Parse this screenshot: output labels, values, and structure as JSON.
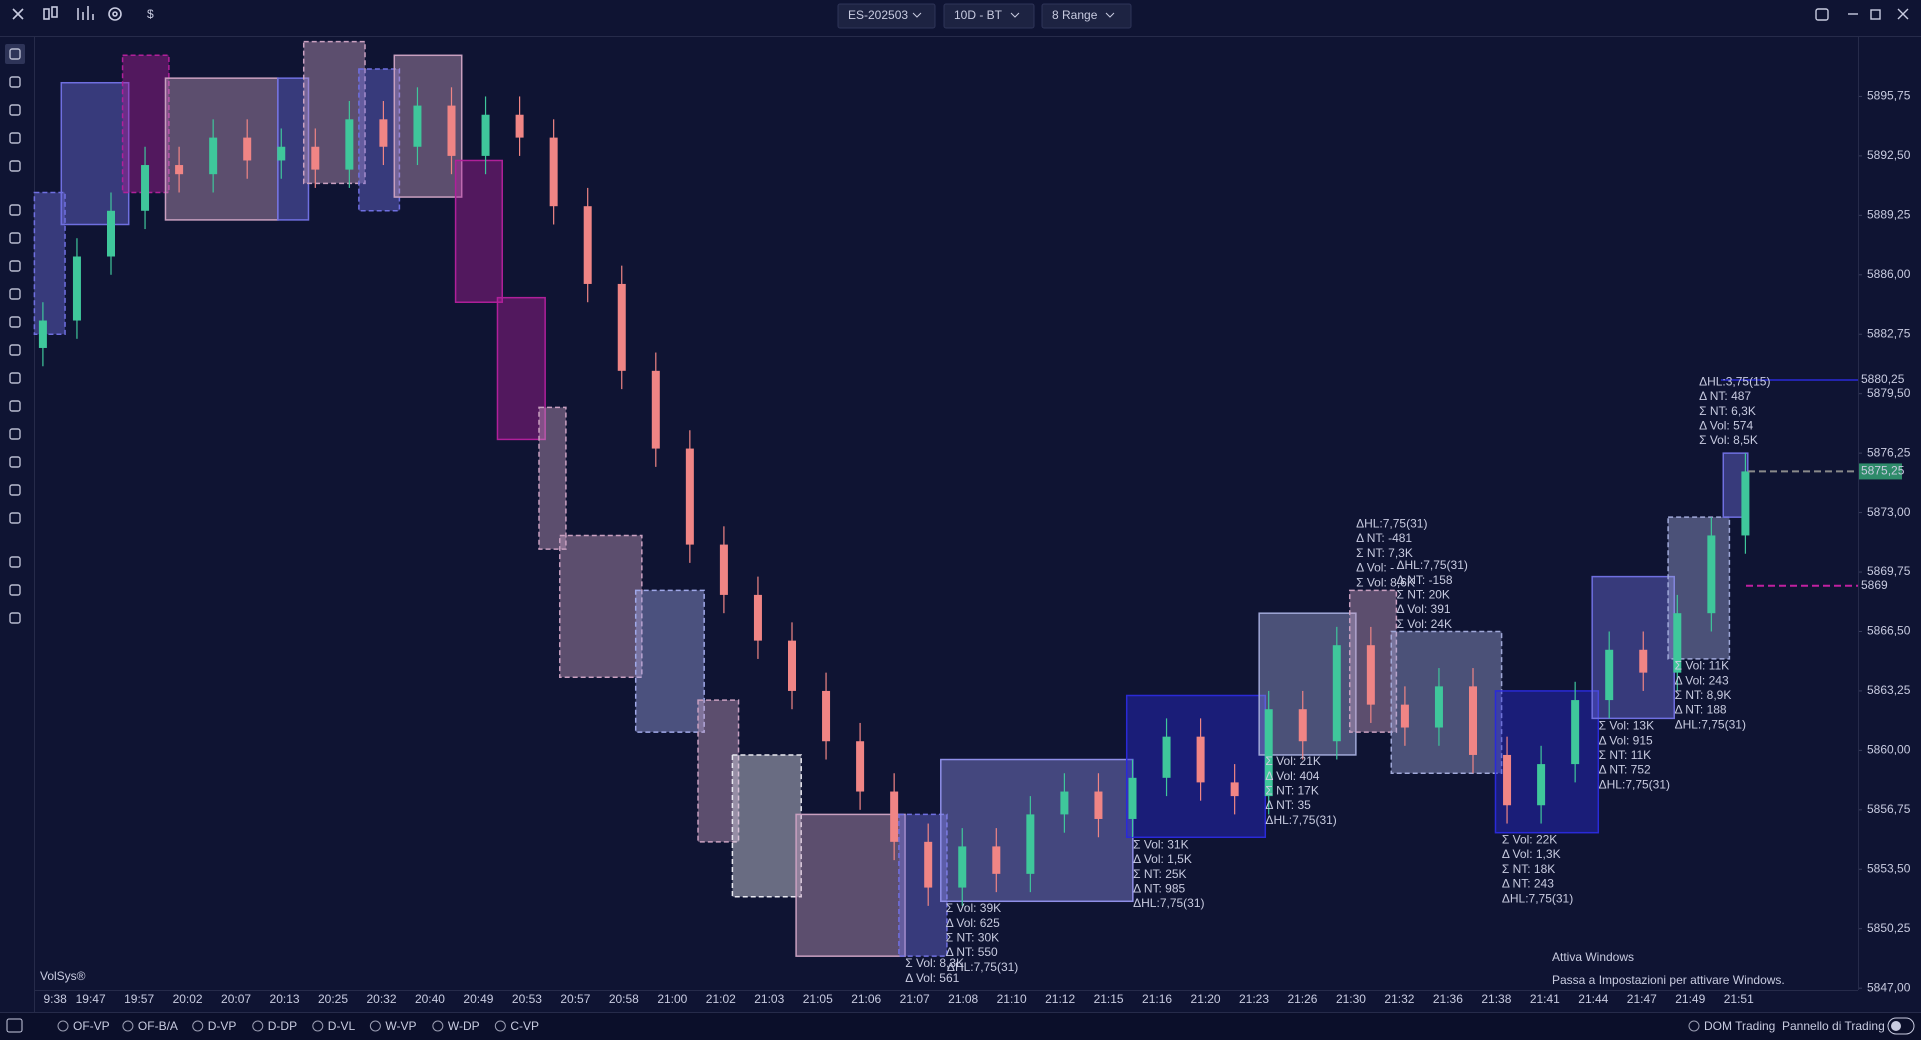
{
  "toolbar": {
    "symbol": "ES-202503",
    "period": "10D - BT",
    "bars": "8 Range",
    "currency": "$"
  },
  "chart": {
    "type": "candlestick",
    "ylim": [
      5846.9,
      5899
    ],
    "yticks": [
      {
        "value": 5847,
        "label": "5847,00"
      },
      {
        "value": 5850.25,
        "label": "5850,25"
      },
      {
        "value": 5853.5,
        "label": "5853,50"
      },
      {
        "value": 5856.75,
        "label": "5856,75"
      },
      {
        "value": 5860,
        "label": "5860,00"
      },
      {
        "value": 5863.25,
        "label": "5863,25"
      },
      {
        "value": 5866.5,
        "label": "5866,50"
      },
      {
        "value": 5869.75,
        "label": "5869,75"
      },
      {
        "value": 5873,
        "label": "5873,00"
      },
      {
        "value": 5876.25,
        "label": "5876,25"
      },
      {
        "value": 5879.5,
        "label": "5879,50"
      },
      {
        "value": 5882.75,
        "label": "5882,75"
      },
      {
        "value": 5886,
        "label": "5886,00"
      },
      {
        "value": 5889.25,
        "label": "5889,25"
      },
      {
        "value": 5892.5,
        "label": "5892,50"
      },
      {
        "value": 5895.75,
        "label": "5895,75"
      }
    ],
    "times": [
      "9:38",
      "19:47",
      "19:57",
      "20:02",
      "20:07",
      "20:13",
      "20:25",
      "20:32",
      "20:40",
      "20:49",
      "20:53",
      "20:57",
      "20:58",
      "21:00",
      "21:02",
      "21:03",
      "21:05",
      "21:06",
      "21:07",
      "21:08",
      "21:10",
      "21:12",
      "21:15",
      "21:16",
      "21:20",
      "21:23",
      "21:26",
      "21:30",
      "21:32",
      "21:36",
      "21:38",
      "21:41",
      "21:44",
      "21:47",
      "21:49",
      "21:51"
    ],
    "up_color": "#3fc79b",
    "down_color": "#f08585",
    "candles": [
      [
        5882,
        5884.5,
        5881,
        5883.5
      ],
      [
        5883.5,
        5888,
        5882.5,
        5887
      ],
      [
        5887,
        5890.5,
        5886,
        5889.5
      ],
      [
        5889.5,
        5893,
        5888.5,
        5892
      ],
      [
        5892,
        5893,
        5890.5,
        5891.5
      ],
      [
        5891.5,
        5894.5,
        5890.5,
        5893.5
      ],
      [
        5893.5,
        5894.5,
        5891.25,
        5892.25
      ],
      [
        5892.25,
        5894,
        5891.25,
        5893
      ],
      [
        5893,
        5894,
        5890.75,
        5891.75
      ],
      [
        5891.75,
        5895.5,
        5890.75,
        5894.5
      ],
      [
        5894.5,
        5895.5,
        5892,
        5893
      ],
      [
        5893,
        5896.25,
        5892,
        5895.25
      ],
      [
        5895.25,
        5896.25,
        5891.5,
        5892.5
      ],
      [
        5892.5,
        5895.75,
        5891.5,
        5894.75
      ],
      [
        5894.75,
        5895.75,
        5892.5,
        5893.5
      ],
      [
        5893.5,
        5894.5,
        5888.75,
        5889.75
      ],
      [
        5889.75,
        5890.75,
        5884.5,
        5885.5
      ],
      [
        5885.5,
        5886.5,
        5879.75,
        5880.75
      ],
      [
        5880.75,
        5881.75,
        5875.5,
        5876.5
      ],
      [
        5876.5,
        5877.5,
        5870.25,
        5871.25
      ],
      [
        5871.25,
        5872.25,
        5867.5,
        5868.5
      ],
      [
        5868.5,
        5869.5,
        5865,
        5866
      ],
      [
        5866,
        5867,
        5862.25,
        5863.25
      ],
      [
        5863.25,
        5864.25,
        5859.5,
        5860.5
      ],
      [
        5860.5,
        5861.5,
        5856.75,
        5857.75
      ],
      [
        5857.75,
        5858.75,
        5854,
        5855
      ],
      [
        5855,
        5856,
        5851.5,
        5852.5
      ],
      [
        5852.5,
        5855.75,
        5851.5,
        5854.75
      ],
      [
        5854.75,
        5855.75,
        5852.25,
        5853.25
      ],
      [
        5853.25,
        5857.5,
        5852.25,
        5856.5
      ],
      [
        5856.5,
        5858.75,
        5855.5,
        5857.75
      ],
      [
        5857.75,
        5858.75,
        5855.25,
        5856.25
      ],
      [
        5856.25,
        5859.5,
        5855.25,
        5858.5
      ],
      [
        5858.5,
        5861.75,
        5857.5,
        5860.75
      ],
      [
        5860.75,
        5861.75,
        5857.25,
        5858.25
      ],
      [
        5858.25,
        5859.25,
        5856.5,
        5857.5
      ],
      [
        5857.5,
        5863.25,
        5856.5,
        5862.25
      ],
      [
        5862.25,
        5863.25,
        5859.5,
        5860.5
      ],
      [
        5860.5,
        5866.75,
        5859.5,
        5865.75
      ],
      [
        5865.75,
        5866.75,
        5861.5,
        5862.5
      ],
      [
        5862.5,
        5863.5,
        5860.25,
        5861.25
      ],
      [
        5861.25,
        5864.5,
        5860.25,
        5863.5
      ],
      [
        5863.5,
        5864.5,
        5858.75,
        5859.75
      ],
      [
        5859.75,
        5860.75,
        5856,
        5857
      ],
      [
        5857,
        5860.25,
        5856,
        5859.25
      ],
      [
        5859.25,
        5863.75,
        5858.25,
        5862.75
      ],
      [
        5862.75,
        5866.5,
        5861.75,
        5865.5
      ],
      [
        5865.5,
        5866.5,
        5863.25,
        5864.25
      ],
      [
        5864.25,
        5868.5,
        5863.25,
        5867.5
      ],
      [
        5867.5,
        5872.75,
        5866.5,
        5871.75
      ],
      [
        5871.75,
        5876.25,
        5870.75,
        5875.25
      ]
    ],
    "boxes": [
      {
        "from": -0.25,
        "to": 0.65,
        "top": 5890.5,
        "bottom": 5882.75,
        "color": "#6f6fe0",
        "dashed": true
      },
      {
        "from": 0.54,
        "to": 2.52,
        "top": 5896.5,
        "bottom": 5888.75,
        "color": "#6f6fe0",
        "dashed": false
      },
      {
        "from": 2.34,
        "to": 3.7,
        "top": 5898,
        "bottom": 5890.5,
        "color": "#b0209a",
        "dashed": true
      },
      {
        "from": 3.6,
        "to": 6.9,
        "top": 5896.75,
        "bottom": 5889,
        "color": "#c9a0c0",
        "dashed": false
      },
      {
        "from": 6.9,
        "to": 7.8,
        "top": 5896.75,
        "bottom": 5889,
        "color": "#6f6fe0",
        "dashed": false
      },
      {
        "from": 7.66,
        "to": 9.46,
        "top": 5898.75,
        "bottom": 5891,
        "color": "#c9a0c0",
        "dashed": true
      },
      {
        "from": 9.28,
        "to": 10.47,
        "top": 5897.25,
        "bottom": 5889.5,
        "color": "#6f6fe0",
        "dashed": true
      },
      {
        "from": 10.32,
        "to": 12.3,
        "top": 5898,
        "bottom": 5890.25,
        "color": "#c9a0c0",
        "dashed": false
      },
      {
        "from": 12.12,
        "to": 13.49,
        "top": 5892.25,
        "bottom": 5884.5,
        "color": "#b0209a",
        "dashed": false
      },
      {
        "from": 13.35,
        "to": 14.75,
        "top": 5884.75,
        "bottom": 5877,
        "color": "#b0209a",
        "dashed": false
      },
      {
        "from": 14.57,
        "to": 15.36,
        "top": 5878.75,
        "bottom": 5871,
        "color": "#c9a0c0",
        "dashed": true
      },
      {
        "from": 15.18,
        "to": 17.59,
        "top": 5871.75,
        "bottom": 5864,
        "color": "#c9a0c0",
        "dashed": true
      },
      {
        "from": 17.41,
        "to": 19.42,
        "top": 5868.75,
        "bottom": 5861,
        "color": "#a0a8e8",
        "dashed": true
      },
      {
        "from": 19.24,
        "to": 20.43,
        "top": 5862.75,
        "bottom": 5855,
        "color": "#c9a0c0",
        "dashed": true
      },
      {
        "from": 20.25,
        "to": 22.27,
        "top": 5859.75,
        "bottom": 5852,
        "color": "#e8e8f0",
        "dashed": true
      },
      {
        "from": 22.12,
        "to": 25.32,
        "top": 5856.5,
        "bottom": 5848.75,
        "color": "#c9a0c0",
        "dashed": false
      },
      {
        "from": 25.14,
        "to": 26.55,
        "top": 5856.5,
        "bottom": 5848.75,
        "color": "#6f6fe0",
        "dashed": true
      },
      {
        "from": 26.37,
        "to": 32.01,
        "top": 5859.5,
        "bottom": 5851.75,
        "color": "#8f8fe8",
        "dashed": false
      },
      {
        "from": 31.83,
        "to": 35.9,
        "top": 5863,
        "bottom": 5855.25,
        "color": "#2a2ad8",
        "dashed": false
      },
      {
        "from": 35.72,
        "to": 38.56,
        "top": 5867.5,
        "bottom": 5859.75,
        "color": "#a0a8d8",
        "dashed": false
      },
      {
        "from": 38.38,
        "to": 39.75,
        "top": 5868.75,
        "bottom": 5861,
        "color": "#c9a0c0",
        "dashed": true
      },
      {
        "from": 39.6,
        "to": 42.84,
        "top": 5866.5,
        "bottom": 5858.75,
        "color": "#a0a8d8",
        "dashed": true
      },
      {
        "from": 42.66,
        "to": 45.68,
        "top": 5863.25,
        "bottom": 5855.5,
        "color": "#2a2ad8",
        "dashed": false
      },
      {
        "from": 45.5,
        "to": 47.91,
        "top": 5869.5,
        "bottom": 5861.75,
        "color": "#6f6fe0",
        "dashed": false
      },
      {
        "from": 47.73,
        "to": 49.53,
        "top": 5872.75,
        "bottom": 5865,
        "color": "#a0a8d8",
        "dashed": true
      },
      {
        "from": 49.35,
        "to": 50.07,
        "top": 5876.25,
        "bottom": 5872.75,
        "color": "#6f6fe0",
        "dashed": false
      }
    ],
    "levels": [
      {
        "value": 5880.25,
        "label": "5880,25",
        "color": "#2a2ad8",
        "dashed": false
      },
      {
        "value": 5875.25,
        "label": "5875,25",
        "color": "#8a8a8a",
        "dashed": true,
        "badge": "#2e8b6a"
      },
      {
        "value": 5869,
        "label": "5869",
        "color": "#c020a0",
        "dashed": true
      }
    ],
    "annotations": [
      {
        "lines": [
          {
            "text": "Σ Vol: 8,3K",
            "color": "#ffffff"
          },
          {
            "text": "Δ Vol: 561",
            "color": "#3aa84a"
          }
        ]
      },
      {
        "lines": [
          {
            "text": "ΔHL:7,75(31)",
            "color": "#ffffff"
          }
        ]
      },
      {
        "lines": [
          {
            "text": "Σ Vol: 39K",
            "color": "#ffffff"
          },
          {
            "text": "Δ Vol: 625",
            "color": "#3aa84a"
          },
          {
            "text": "Σ NT: 30K",
            "color": "#ffffff"
          },
          {
            "text": "Δ NT: 550",
            "color": "#3aa84a"
          }
        ]
      },
      {
        "lines": [
          {
            "text": "Σ Vol: 31K",
            "color": "#ffffff"
          },
          {
            "text": "Δ Vol: 1,5K",
            "color": "#3aa84a"
          },
          {
            "text": "Σ NT: 25K",
            "color": "#ffffff"
          },
          {
            "text": "Δ NT: 985",
            "color": "#3aa84a"
          },
          {
            "text": "ΔHL:7,75(31)",
            "color": "#ffffff"
          }
        ]
      },
      {
        "lines": [
          {
            "text": "Σ Vol: 21K",
            "color": "#ffffff"
          },
          {
            "text": "Δ Vol: 404",
            "color": "#3aa84a"
          },
          {
            "text": "Σ NT: 17K",
            "color": "#ffffff"
          },
          {
            "text": "Δ NT: 35",
            "color": "#3aa84a"
          },
          {
            "text": "ΔHL:7,75(31)",
            "color": "#ffffff"
          }
        ]
      },
      {
        "lines": [
          {
            "text": "ΔHL:7,75(31)",
            "color": "#ffffff"
          },
          {
            "text": "Δ NT: -481",
            "color": "#ff3030"
          },
          {
            "text": "Σ NT: 7,3K",
            "color": "#ffffff"
          },
          {
            "text": "Δ Vol: -",
            "color": "#ff3030"
          },
          {
            "text": "Σ Vol: 8,6K",
            "color": "#ffffff"
          }
        ]
      },
      {
        "lines": [
          {
            "text": "ΔHL:7,75(31)",
            "color": "#ffffff"
          },
          {
            "text": "Δ NT: -158",
            "color": "#ff3030"
          },
          {
            "text": "Σ NT: 20K",
            "color": "#ffffff"
          },
          {
            "text": "Δ Vol: 391",
            "color": "#3aa84a"
          },
          {
            "text": "Σ Vol: 24K",
            "color": "#ffffff"
          }
        ]
      },
      {
        "lines": [
          {
            "text": "Σ Vol: 22K",
            "color": "#ffffff"
          },
          {
            "text": "Δ Vol: 1,3K",
            "color": "#3aa84a"
          },
          {
            "text": "Σ NT: 18K",
            "color": "#ffffff"
          },
          {
            "text": "Δ NT: 243",
            "color": "#3aa84a"
          },
          {
            "text": "ΔHL:7,75(31)",
            "color": "#ffffff"
          }
        ]
      },
      {
        "lines": [
          {
            "text": "Σ Vol: 13K",
            "color": "#ffffff"
          },
          {
            "text": "Δ Vol: 915",
            "color": "#3aa84a"
          },
          {
            "text": "Σ NT: 11K",
            "color": "#ffffff"
          },
          {
            "text": "Δ NT: 752",
            "color": "#3aa84a"
          },
          {
            "text": "ΔHL:7,75(31)",
            "color": "#ffffff"
          }
        ]
      },
      {
        "lines": [
          {
            "text": "Σ Vol: 11K",
            "color": "#ffffff"
          },
          {
            "text": "Δ Vol: 243",
            "color": "#3aa84a"
          },
          {
            "text": "Σ NT: 8,9K",
            "color": "#ffffff"
          },
          {
            "text": "Δ NT: 188",
            "color": "#3aa84a"
          },
          {
            "text": "ΔHL:7,75(31)",
            "color": "#ffffff"
          }
        ]
      },
      {
        "lines": [
          {
            "text": "ΔHL:3,75(15)",
            "color": "#ffffff"
          },
          {
            "text": "Δ NT: 487",
            "color": "#3aa84a"
          },
          {
            "text": "Σ NT: 6,3K",
            "color": "#ffffff"
          },
          {
            "text": "Δ Vol: 574",
            "color": "#3aa84a"
          },
          {
            "text": "Σ Vol: 8,5K",
            "color": "#ffffff"
          }
        ]
      }
    ],
    "watermark": "VolSys®"
  },
  "bottom_bar": {
    "studies": [
      "OF-VP",
      "OF-B/A",
      "D-VP",
      "D-DP",
      "D-VL",
      "W-VP",
      "W-DP",
      "C-VP"
    ],
    "dom": "DOM Trading",
    "panel": "Pannello di Trading"
  },
  "windows_notice": {
    "title": "Attiva Windows",
    "text": "Passa a Impostazioni per attivare Windows."
  }
}
